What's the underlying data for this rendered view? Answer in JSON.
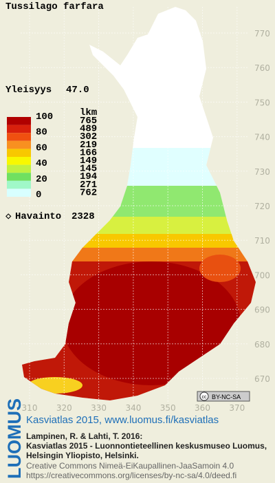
{
  "title": "Tussilago farfara",
  "frequency": {
    "label": "Yleisyys",
    "value": "47.0"
  },
  "legend": {
    "scale_labels": [
      "100",
      "80",
      "60",
      "40",
      "20",
      "0"
    ],
    "count_header": "lkm",
    "counts": [
      "765",
      "489",
      "302",
      "219",
      "166",
      "149",
      "145",
      "194",
      "271",
      "762"
    ],
    "colors": [
      "#b00000",
      "#d8200c",
      "#f05010",
      "#f89020",
      "#f8c800",
      "#f8f800",
      "#c0f040",
      "#70e060",
      "#a0f8c8",
      "#d8ffff"
    ]
  },
  "observations": {
    "label": "Havainto",
    "value": "2328"
  },
  "y_labels": [
    "770",
    "760",
    "750",
    "740",
    "730",
    "720",
    "710",
    "700",
    "690",
    "680",
    "670"
  ],
  "x_labels": [
    "310",
    "320",
    "330",
    "340",
    "350",
    "360",
    "370"
  ],
  "badge": "BY-NC-SA",
  "footer": {
    "brand": "LUOMUS",
    "headline": "Kasviatlas 2015, www.luomus.fi/kasviatlas",
    "citation": [
      "Lampinen, R. & Lahti, T. 2016:",
      "Kasviatlas 2015 - Luonnontieteellinen keskusmuseo Luomus,",
      "Helsingin Yliopisto, Helsinki."
    ],
    "license": [
      "Creative Commons Nimeä-EiKaupallinen-JaaSamoin 4.0",
      "https://creativecommons.org/licenses/by-nc-sa/4.0/deed.fi"
    ]
  }
}
